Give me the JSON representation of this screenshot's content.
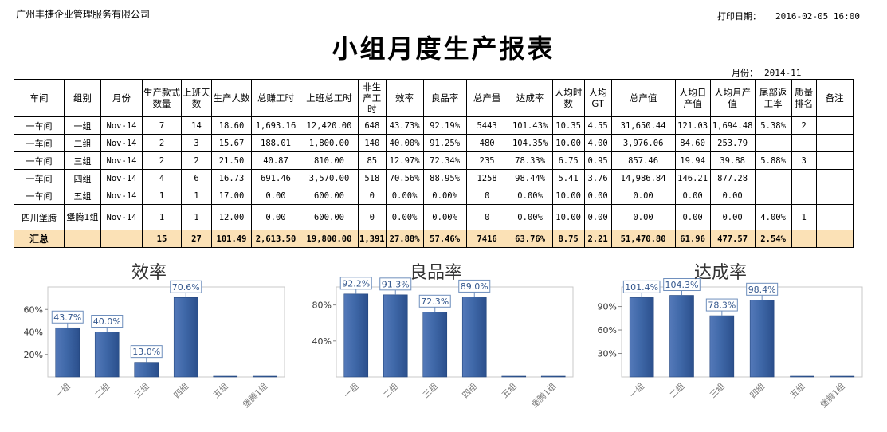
{
  "header": {
    "company": "广州丰捷企业管理服务有限公司",
    "print_label": "打印日期：",
    "print_value": "2016-02-05 16:00",
    "title": "小组月度生产报表",
    "month_label": "月份：",
    "month_value": "2014-11"
  },
  "table": {
    "columns": [
      "车间",
      "组别",
      "月份",
      "生产款式数量",
      "上班天数",
      "生产人数",
      "总赚工时",
      "上班总工时",
      "非生产工时",
      "效率",
      "良品率",
      "总产量",
      "达成率",
      "人均时数",
      "人均GT",
      "总产值",
      "人均日产值",
      "人均月产值",
      "尾部返工率",
      "质量排名",
      "备注"
    ],
    "rows": [
      [
        "一车间",
        "一组",
        "Nov-14",
        "7",
        "14",
        "18.60",
        "1,693.16",
        "12,420.00",
        "648",
        "43.73%",
        "92.19%",
        "5443",
        "101.43%",
        "10.35",
        "4.55",
        "31,650.44",
        "121.03",
        "1,694.48",
        "5.38%",
        "2",
        ""
      ],
      [
        "一车间",
        "二组",
        "Nov-14",
        "2",
        "3",
        "15.67",
        "188.01",
        "1,800.00",
        "140",
        "40.00%",
        "91.25%",
        "480",
        "104.35%",
        "10.00",
        "4.00",
        "3,976.06",
        "84.60",
        "253.79",
        "",
        "",
        ""
      ],
      [
        "一车间",
        "三组",
        "Nov-14",
        "2",
        "2",
        "21.50",
        "40.87",
        "810.00",
        "85",
        "12.97%",
        "72.34%",
        "235",
        "78.33%",
        "6.75",
        "0.95",
        "857.46",
        "19.94",
        "39.88",
        "5.88%",
        "3",
        ""
      ],
      [
        "一车间",
        "四组",
        "Nov-14",
        "4",
        "6",
        "16.73",
        "691.46",
        "3,570.00",
        "518",
        "70.56%",
        "88.95%",
        "1258",
        "98.44%",
        "5.41",
        "3.76",
        "14,986.84",
        "146.21",
        "877.28",
        "",
        "",
        ""
      ],
      [
        "一车间",
        "五组",
        "Nov-14",
        "1",
        "1",
        "17.00",
        "0.00",
        "600.00",
        "0",
        "0.00%",
        "0.00%",
        "0",
        "0.00%",
        "10.00",
        "0.00",
        "0.00",
        "0.00",
        "0.00",
        "",
        "",
        ""
      ],
      [
        "四川堡腾",
        "堡腾1组",
        "Nov-14",
        "1",
        "1",
        "12.00",
        "0.00",
        "600.00",
        "0",
        "0.00%",
        "0.00%",
        "0",
        "0.00%",
        "10.00",
        "0.00",
        "0.00",
        "0.00",
        "0.00",
        "4.00%",
        "1",
        ""
      ]
    ],
    "total": [
      "汇总",
      "",
      "",
      "15",
      "27",
      "101.49",
      "2,613.50",
      "19,800.00",
      "1,391",
      "27.88%",
      "57.46%",
      "7416",
      "63.76%",
      "8.75",
      "2.21",
      "51,470.80",
      "61.96",
      "477.57",
      "2.54%",
      "",
      ""
    ]
  },
  "chart_data": [
    {
      "type": "bar",
      "title": "效率",
      "categories": [
        "一组",
        "二组",
        "三组",
        "四组",
        "五组",
        "堡腾1组"
      ],
      "values": [
        43.7,
        40.0,
        13.0,
        70.6,
        0,
        0
      ],
      "data_labels": [
        "43.7%",
        "40.0%",
        "13.0%",
        "70.6%",
        "",
        ""
      ],
      "yticks": [
        "20%",
        "40%",
        "60%"
      ],
      "ylim": [
        0,
        80
      ],
      "grid": false,
      "bar_color": "#3f68a8"
    },
    {
      "type": "bar",
      "title": "良品率",
      "categories": [
        "一组",
        "二组",
        "三组",
        "四组",
        "五组",
        "堡腾1组"
      ],
      "values": [
        92.2,
        91.3,
        72.3,
        89.0,
        0,
        0
      ],
      "data_labels": [
        "92.2%",
        "91.3%",
        "72.3%",
        "89.0%",
        "",
        ""
      ],
      "yticks": [
        "40%",
        "80%"
      ],
      "ylim": [
        0,
        100
      ],
      "grid": false,
      "bar_color": "#3f68a8"
    },
    {
      "type": "bar",
      "title": "达成率",
      "categories": [
        "一组",
        "二组",
        "三组",
        "四组",
        "五组",
        "堡腾1组"
      ],
      "values": [
        101.4,
        104.3,
        78.3,
        98.4,
        0,
        0
      ],
      "data_labels": [
        "101.4%",
        "104.3%",
        "78.3%",
        "98.4%",
        "",
        ""
      ],
      "yticks": [
        "30%",
        "60%",
        "90%"
      ],
      "ylim": [
        0,
        115
      ],
      "grid": false,
      "bar_color": "#3f68a8"
    }
  ]
}
